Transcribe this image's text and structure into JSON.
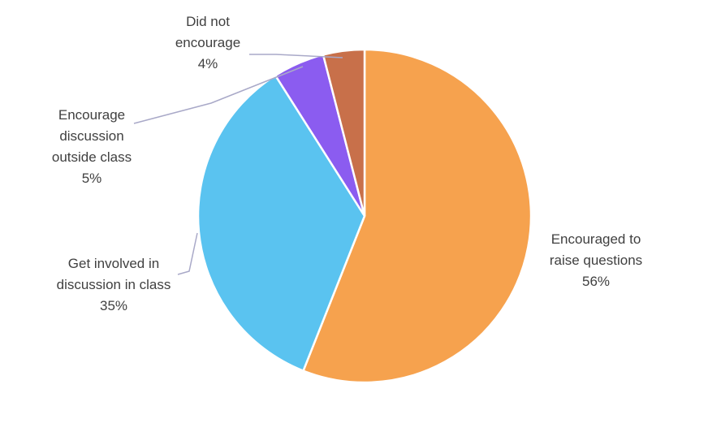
{
  "chart_data": {
    "type": "pie",
    "title": "",
    "slices": [
      {
        "label": [
          "Encouraged to",
          "raise questions"
        ],
        "value": 56,
        "value_label": "56%",
        "color": "#F6A24E"
      },
      {
        "label": [
          "Get involved in",
          "discussion in class"
        ],
        "value": 35,
        "value_label": "35%",
        "color": "#5AC3F0"
      },
      {
        "label": [
          "Encourage",
          "discussion",
          "outside class"
        ],
        "value": 5,
        "value_label": "5%",
        "color": "#8B5CF0"
      },
      {
        "label": [
          "Did not",
          "encourage"
        ],
        "value": 4,
        "value_label": "4%",
        "color": "#C8704A"
      }
    ],
    "start_angle_deg": 0,
    "direction": "clockwise",
    "leader_line_color": "#A9A9C8"
  }
}
